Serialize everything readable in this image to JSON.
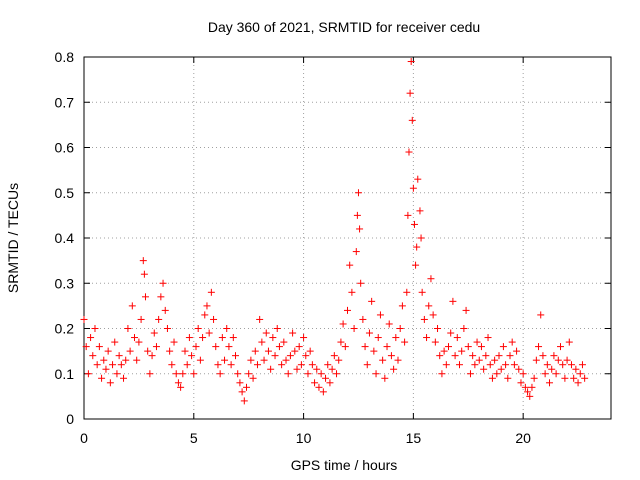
{
  "chart_data": {
    "type": "scatter",
    "title": "Day 360 of 2021, SRMTID for receiver cedu",
    "xlabel": "GPS time / hours",
    "ylabel": "SRMTID / TECUs",
    "xlim": [
      0,
      24
    ],
    "ylim": [
      0,
      0.8
    ],
    "xticks": [
      0,
      5,
      10,
      15,
      20
    ],
    "yticks": [
      0,
      0.1,
      0.2,
      0.3,
      0.4,
      0.5,
      0.6,
      0.7,
      0.8
    ],
    "xtick_labels": [
      "0",
      "5",
      "10",
      "15",
      "20"
    ],
    "ytick_labels": [
      "0",
      "0.1",
      "0.2",
      "0.3",
      "0.4",
      "0.5",
      "0.6",
      "0.7",
      "0.8"
    ],
    "grid": true,
    "marker": "+",
    "color": "#ff0000",
    "series": [
      {
        "name": "SRMTID",
        "points": [
          [
            0.0,
            0.22
          ],
          [
            0.1,
            0.16
          ],
          [
            0.2,
            0.1
          ],
          [
            0.3,
            0.18
          ],
          [
            0.4,
            0.14
          ],
          [
            0.5,
            0.2
          ],
          [
            0.6,
            0.12
          ],
          [
            0.7,
            0.16
          ],
          [
            0.8,
            0.09
          ],
          [
            0.9,
            0.13
          ],
          [
            1.0,
            0.11
          ],
          [
            1.1,
            0.15
          ],
          [
            1.2,
            0.08
          ],
          [
            1.3,
            0.12
          ],
          [
            1.4,
            0.17
          ],
          [
            1.5,
            0.1
          ],
          [
            1.6,
            0.14
          ],
          [
            1.7,
            0.12
          ],
          [
            1.8,
            0.09
          ],
          [
            1.9,
            0.13
          ],
          [
            2.0,
            0.2
          ],
          [
            2.1,
            0.15
          ],
          [
            2.2,
            0.25
          ],
          [
            2.3,
            0.18
          ],
          [
            2.4,
            0.13
          ],
          [
            2.5,
            0.17
          ],
          [
            2.6,
            0.22
          ],
          [
            2.7,
            0.35
          ],
          [
            2.75,
            0.32
          ],
          [
            2.8,
            0.27
          ],
          [
            2.9,
            0.15
          ],
          [
            3.0,
            0.1
          ],
          [
            3.1,
            0.14
          ],
          [
            3.2,
            0.19
          ],
          [
            3.3,
            0.16
          ],
          [
            3.4,
            0.22
          ],
          [
            3.5,
            0.27
          ],
          [
            3.6,
            0.3
          ],
          [
            3.7,
            0.24
          ],
          [
            3.8,
            0.2
          ],
          [
            3.9,
            0.15
          ],
          [
            4.0,
            0.12
          ],
          [
            4.1,
            0.17
          ],
          [
            4.2,
            0.1
          ],
          [
            4.3,
            0.08
          ],
          [
            4.4,
            0.07
          ],
          [
            4.5,
            0.1
          ],
          [
            4.6,
            0.15
          ],
          [
            4.7,
            0.12
          ],
          [
            4.8,
            0.18
          ],
          [
            4.9,
            0.14
          ],
          [
            5.0,
            0.1
          ],
          [
            5.1,
            0.16
          ],
          [
            5.2,
            0.2
          ],
          [
            5.3,
            0.13
          ],
          [
            5.4,
            0.18
          ],
          [
            5.5,
            0.23
          ],
          [
            5.6,
            0.25
          ],
          [
            5.7,
            0.19
          ],
          [
            5.8,
            0.28
          ],
          [
            5.9,
            0.22
          ],
          [
            6.0,
            0.16
          ],
          [
            6.1,
            0.12
          ],
          [
            6.2,
            0.1
          ],
          [
            6.3,
            0.18
          ],
          [
            6.4,
            0.13
          ],
          [
            6.5,
            0.2
          ],
          [
            6.6,
            0.16
          ],
          [
            6.7,
            0.12
          ],
          [
            6.8,
            0.18
          ],
          [
            6.9,
            0.14
          ],
          [
            7.0,
            0.1
          ],
          [
            7.1,
            0.08
          ],
          [
            7.2,
            0.06
          ],
          [
            7.3,
            0.04
          ],
          [
            7.4,
            0.07
          ],
          [
            7.5,
            0.1
          ],
          [
            7.6,
            0.13
          ],
          [
            7.7,
            0.09
          ],
          [
            7.8,
            0.15
          ],
          [
            7.9,
            0.12
          ],
          [
            8.0,
            0.22
          ],
          [
            8.1,
            0.17
          ],
          [
            8.2,
            0.13
          ],
          [
            8.3,
            0.19
          ],
          [
            8.4,
            0.15
          ],
          [
            8.5,
            0.11
          ],
          [
            8.6,
            0.18
          ],
          [
            8.7,
            0.14
          ],
          [
            8.8,
            0.2
          ],
          [
            8.9,
            0.16
          ],
          [
            9.0,
            0.12
          ],
          [
            9.1,
            0.17
          ],
          [
            9.2,
            0.13
          ],
          [
            9.3,
            0.1
          ],
          [
            9.4,
            0.14
          ],
          [
            9.5,
            0.19
          ],
          [
            9.6,
            0.15
          ],
          [
            9.7,
            0.11
          ],
          [
            9.8,
            0.16
          ],
          [
            9.9,
            0.12
          ],
          [
            10.0,
            0.18
          ],
          [
            10.1,
            0.14
          ],
          [
            10.2,
            0.1
          ],
          [
            10.3,
            0.15
          ],
          [
            10.4,
            0.12
          ],
          [
            10.5,
            0.08
          ],
          [
            10.6,
            0.11
          ],
          [
            10.7,
            0.07
          ],
          [
            10.8,
            0.1
          ],
          [
            10.9,
            0.06
          ],
          [
            11.0,
            0.09
          ],
          [
            11.1,
            0.12
          ],
          [
            11.2,
            0.08
          ],
          [
            11.3,
            0.11
          ],
          [
            11.4,
            0.14
          ],
          [
            11.5,
            0.1
          ],
          [
            11.6,
            0.13
          ],
          [
            11.7,
            0.17
          ],
          [
            11.8,
            0.21
          ],
          [
            11.9,
            0.16
          ],
          [
            12.0,
            0.24
          ],
          [
            12.1,
            0.34
          ],
          [
            12.2,
            0.28
          ],
          [
            12.3,
            0.2
          ],
          [
            12.4,
            0.37
          ],
          [
            12.45,
            0.45
          ],
          [
            12.5,
            0.5
          ],
          [
            12.55,
            0.42
          ],
          [
            12.6,
            0.3
          ],
          [
            12.7,
            0.22
          ],
          [
            12.8,
            0.16
          ],
          [
            12.9,
            0.12
          ],
          [
            13.0,
            0.19
          ],
          [
            13.1,
            0.26
          ],
          [
            13.2,
            0.15
          ],
          [
            13.3,
            0.1
          ],
          [
            13.4,
            0.18
          ],
          [
            13.5,
            0.23
          ],
          [
            13.6,
            0.13
          ],
          [
            13.7,
            0.09
          ],
          [
            13.8,
            0.16
          ],
          [
            13.9,
            0.21
          ],
          [
            14.0,
            0.14
          ],
          [
            14.1,
            0.11
          ],
          [
            14.2,
            0.18
          ],
          [
            14.3,
            0.13
          ],
          [
            14.4,
            0.2
          ],
          [
            14.5,
            0.25
          ],
          [
            14.6,
            0.17
          ],
          [
            14.7,
            0.28
          ],
          [
            14.75,
            0.45
          ],
          [
            14.8,
            0.59
          ],
          [
            14.85,
            0.72
          ],
          [
            14.9,
            0.79
          ],
          [
            14.95,
            0.66
          ],
          [
            15.0,
            0.51
          ],
          [
            15.05,
            0.43
          ],
          [
            15.1,
            0.34
          ],
          [
            15.15,
            0.38
          ],
          [
            15.2,
            0.53
          ],
          [
            15.3,
            0.46
          ],
          [
            15.35,
            0.4
          ],
          [
            15.4,
            0.28
          ],
          [
            15.5,
            0.22
          ],
          [
            15.6,
            0.18
          ],
          [
            15.7,
            0.25
          ],
          [
            15.8,
            0.31
          ],
          [
            15.9,
            0.23
          ],
          [
            16.0,
            0.17
          ],
          [
            16.1,
            0.2
          ],
          [
            16.2,
            0.14
          ],
          [
            16.3,
            0.1
          ],
          [
            16.4,
            0.15
          ],
          [
            16.5,
            0.12
          ],
          [
            16.6,
            0.16
          ],
          [
            16.7,
            0.19
          ],
          [
            16.8,
            0.26
          ],
          [
            16.9,
            0.14
          ],
          [
            17.0,
            0.18
          ],
          [
            17.1,
            0.12
          ],
          [
            17.2,
            0.15
          ],
          [
            17.3,
            0.2
          ],
          [
            17.4,
            0.24
          ],
          [
            17.5,
            0.16
          ],
          [
            17.6,
            0.1
          ],
          [
            17.7,
            0.14
          ],
          [
            17.8,
            0.12
          ],
          [
            17.9,
            0.17
          ],
          [
            18.0,
            0.13
          ],
          [
            18.1,
            0.16
          ],
          [
            18.2,
            0.11
          ],
          [
            18.3,
            0.14
          ],
          [
            18.4,
            0.18
          ],
          [
            18.5,
            0.12
          ],
          [
            18.6,
            0.09
          ],
          [
            18.7,
            0.13
          ],
          [
            18.8,
            0.1
          ],
          [
            18.9,
            0.14
          ],
          [
            19.0,
            0.11
          ],
          [
            19.1,
            0.16
          ],
          [
            19.2,
            0.12
          ],
          [
            19.3,
            0.09
          ],
          [
            19.4,
            0.14
          ],
          [
            19.5,
            0.17
          ],
          [
            19.6,
            0.12
          ],
          [
            19.7,
            0.15
          ],
          [
            19.8,
            0.11
          ],
          [
            19.9,
            0.08
          ],
          [
            20.0,
            0.1
          ],
          [
            20.1,
            0.07
          ],
          [
            20.2,
            0.06
          ],
          [
            20.3,
            0.05
          ],
          [
            20.4,
            0.07
          ],
          [
            20.5,
            0.09
          ],
          [
            20.6,
            0.13
          ],
          [
            20.7,
            0.16
          ],
          [
            20.8,
            0.23
          ],
          [
            20.9,
            0.14
          ],
          [
            21.0,
            0.1
          ],
          [
            21.1,
            0.12
          ],
          [
            21.2,
            0.08
          ],
          [
            21.3,
            0.11
          ],
          [
            21.4,
            0.14
          ],
          [
            21.5,
            0.1
          ],
          [
            21.6,
            0.13
          ],
          [
            21.7,
            0.16
          ],
          [
            21.8,
            0.12
          ],
          [
            21.9,
            0.09
          ],
          [
            22.0,
            0.13
          ],
          [
            22.1,
            0.17
          ],
          [
            22.2,
            0.12
          ],
          [
            22.3,
            0.09
          ],
          [
            22.4,
            0.11
          ],
          [
            22.5,
            0.08
          ],
          [
            22.6,
            0.1
          ],
          [
            22.7,
            0.12
          ],
          [
            22.8,
            0.09
          ]
        ]
      }
    ]
  }
}
